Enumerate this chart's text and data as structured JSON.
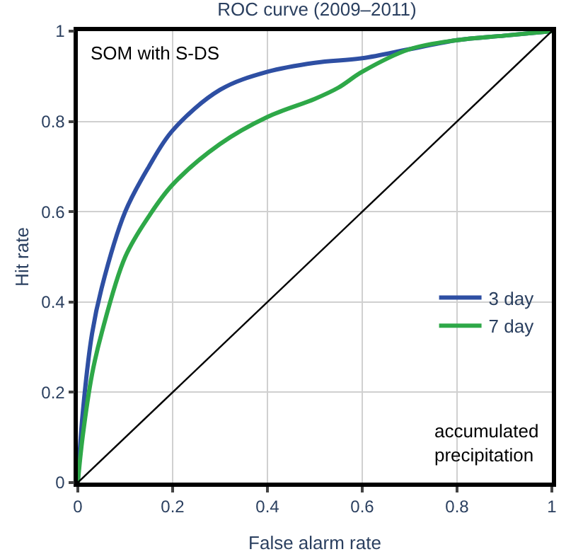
{
  "chart_data": {
    "type": "line",
    "title": "ROC curve (2009–2011)",
    "xlabel": "False alarm rate",
    "ylabel": "Hit rate",
    "xlim": [
      0,
      1
    ],
    "ylim": [
      0,
      1
    ],
    "xticks": [
      0,
      0.2,
      0.4,
      0.6,
      0.8,
      1
    ],
    "yticks": [
      0,
      0.2,
      0.4,
      0.6,
      0.8,
      1
    ],
    "grid": true,
    "legend": "bottom right",
    "line_style": "solid",
    "marker": "none",
    "annotations": [
      "SOM with S-DS",
      "accumulated\nprecipitation"
    ],
    "series": [
      {
        "name": "3 day",
        "color": "#2e4fa3",
        "x": [
          0,
          0.01,
          0.03,
          0.05,
          0.1,
          0.15,
          0.2,
          0.3,
          0.4,
          0.5,
          0.6,
          0.7,
          0.8,
          0.9,
          1
        ],
        "values": [
          0,
          0.15,
          0.33,
          0.43,
          0.6,
          0.7,
          0.78,
          0.87,
          0.91,
          0.93,
          0.94,
          0.96,
          0.98,
          0.99,
          1
        ]
      },
      {
        "name": "7 day",
        "color": "#2ea848",
        "x": [
          0,
          0.01,
          0.03,
          0.05,
          0.1,
          0.15,
          0.2,
          0.3,
          0.4,
          0.5,
          0.55,
          0.6,
          0.7,
          0.8,
          0.9,
          1
        ],
        "values": [
          0,
          0.1,
          0.24,
          0.33,
          0.5,
          0.59,
          0.66,
          0.75,
          0.81,
          0.85,
          0.875,
          0.91,
          0.96,
          0.98,
          0.99,
          1
        ]
      },
      {
        "color": "#000000",
        "x": [
          0,
          1
        ],
        "values": [
          0,
          1
        ]
      }
    ]
  }
}
